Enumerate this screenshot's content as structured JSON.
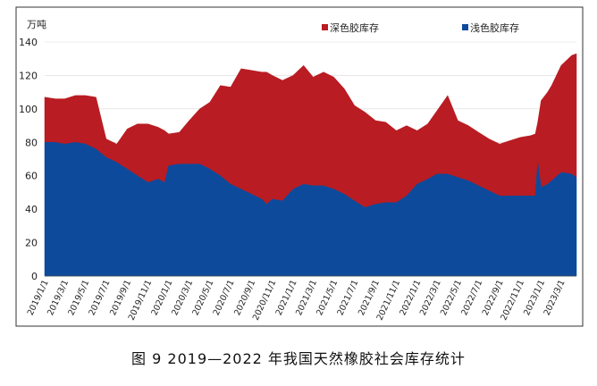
{
  "figure_caption": "图 9  2019—2022 年我国天然橡胶社会库存统计",
  "chart_data": {
    "type": "area",
    "stacked": true,
    "unit_label": "万吨",
    "ylim": [
      0,
      140
    ],
    "yticks": [
      0,
      20,
      40,
      60,
      80,
      100,
      120,
      140
    ],
    "xlim": [
      "2019-01-01",
      "2023-04-15"
    ],
    "xtick_labels": [
      "2019/1/1",
      "2019/3/1",
      "2019/5/1",
      "2019/7/1",
      "2019/9/1",
      "2019/11/1",
      "2020/1/1",
      "2020/3/1",
      "2020/5/1",
      "2020/7/1",
      "2020/9/1",
      "2020/11/1",
      "2021/1/1",
      "2021/3/1",
      "2021/5/1",
      "2021/7/1",
      "2021/9/1",
      "2021/11/1",
      "2022/1/1",
      "2022/3/1",
      "2022/5/1",
      "2022/7/1",
      "2022/9/1",
      "2022/11/1",
      "2023/1/1",
      "2023/3/1"
    ],
    "legend_position": "top",
    "series": [
      {
        "name": "浅色胶库存",
        "color": "#0d4a9c",
        "points": [
          [
            "2019-01-01",
            80
          ],
          [
            "2019-02-01",
            80
          ],
          [
            "2019-03-01",
            79
          ],
          [
            "2019-04-01",
            80
          ],
          [
            "2019-05-01",
            79
          ],
          [
            "2019-06-01",
            76
          ],
          [
            "2019-07-01",
            71
          ],
          [
            "2019-08-01",
            68
          ],
          [
            "2019-09-01",
            64
          ],
          [
            "2019-10-01",
            60
          ],
          [
            "2019-11-01",
            56
          ],
          [
            "2019-12-01",
            58
          ],
          [
            "2019-12-20",
            56
          ],
          [
            "2020-01-01",
            66
          ],
          [
            "2020-02-01",
            67
          ],
          [
            "2020-03-01",
            67
          ],
          [
            "2020-04-01",
            67
          ],
          [
            "2020-05-01",
            64
          ],
          [
            "2020-06-01",
            60
          ],
          [
            "2020-07-01",
            55
          ],
          [
            "2020-08-01",
            52
          ],
          [
            "2020-09-01",
            49
          ],
          [
            "2020-10-01",
            46
          ],
          [
            "2020-10-15",
            43
          ],
          [
            "2020-11-01",
            46
          ],
          [
            "2020-12-01",
            45
          ],
          [
            "2021-01-01",
            52
          ],
          [
            "2021-02-01",
            55
          ],
          [
            "2021-03-01",
            54
          ],
          [
            "2021-04-01",
            54
          ],
          [
            "2021-05-01",
            52
          ],
          [
            "2021-06-01",
            49
          ],
          [
            "2021-07-01",
            45
          ],
          [
            "2021-08-01",
            41
          ],
          [
            "2021-09-01",
            43
          ],
          [
            "2021-10-01",
            44
          ],
          [
            "2021-11-01",
            44
          ],
          [
            "2021-12-01",
            48
          ],
          [
            "2022-01-01",
            55
          ],
          [
            "2022-02-01",
            58
          ],
          [
            "2022-03-01",
            61
          ],
          [
            "2022-04-01",
            61
          ],
          [
            "2022-05-01",
            59
          ],
          [
            "2022-06-01",
            57
          ],
          [
            "2022-07-01",
            54
          ],
          [
            "2022-08-01",
            51
          ],
          [
            "2022-09-01",
            48
          ],
          [
            "2022-10-01",
            48
          ],
          [
            "2022-11-01",
            48
          ],
          [
            "2022-12-01",
            48
          ],
          [
            "2022-12-15",
            48
          ],
          [
            "2022-12-22",
            68
          ],
          [
            "2023-01-01",
            53
          ],
          [
            "2023-01-20",
            55
          ],
          [
            "2023-02-01",
            57
          ],
          [
            "2023-03-01",
            62
          ],
          [
            "2023-04-01",
            61
          ],
          [
            "2023-04-15",
            59
          ]
        ]
      },
      {
        "name": "深色胶库存",
        "color": "#b91c22",
        "points": [
          [
            "2019-01-01",
            27
          ],
          [
            "2019-02-01",
            26
          ],
          [
            "2019-03-01",
            27
          ],
          [
            "2019-04-01",
            28
          ],
          [
            "2019-05-01",
            29
          ],
          [
            "2019-06-01",
            31
          ],
          [
            "2019-07-01",
            11
          ],
          [
            "2019-08-01",
            11
          ],
          [
            "2019-09-01",
            24
          ],
          [
            "2019-10-01",
            31
          ],
          [
            "2019-11-01",
            35
          ],
          [
            "2019-12-01",
            31
          ],
          [
            "2019-12-20",
            31
          ],
          [
            "2020-01-01",
            19
          ],
          [
            "2020-02-01",
            19
          ],
          [
            "2020-03-01",
            26
          ],
          [
            "2020-04-01",
            33
          ],
          [
            "2020-05-01",
            40
          ],
          [
            "2020-06-01",
            54
          ],
          [
            "2020-07-01",
            58
          ],
          [
            "2020-08-01",
            72
          ],
          [
            "2020-09-01",
            74
          ],
          [
            "2020-10-01",
            76
          ],
          [
            "2020-10-15",
            79
          ],
          [
            "2020-11-01",
            74
          ],
          [
            "2020-12-01",
            72
          ],
          [
            "2021-01-01",
            68
          ],
          [
            "2021-02-01",
            71
          ],
          [
            "2021-03-01",
            65
          ],
          [
            "2021-04-01",
            68
          ],
          [
            "2021-05-01",
            67
          ],
          [
            "2021-06-01",
            63
          ],
          [
            "2021-07-01",
            57
          ],
          [
            "2021-08-01",
            57
          ],
          [
            "2021-09-01",
            50
          ],
          [
            "2021-10-01",
            48
          ],
          [
            "2021-11-01",
            43
          ],
          [
            "2021-12-01",
            42
          ],
          [
            "2022-01-01",
            32
          ],
          [
            "2022-02-01",
            33
          ],
          [
            "2022-03-01",
            38
          ],
          [
            "2022-04-01",
            47
          ],
          [
            "2022-05-01",
            34
          ],
          [
            "2022-06-01",
            33
          ],
          [
            "2022-07-01",
            32
          ],
          [
            "2022-08-01",
            31
          ],
          [
            "2022-09-01",
            31
          ],
          [
            "2022-10-01",
            33
          ],
          [
            "2022-11-01",
            35
          ],
          [
            "2022-12-01",
            36
          ],
          [
            "2022-12-15",
            37
          ],
          [
            "2022-12-22",
            24
          ],
          [
            "2023-01-01",
            52
          ],
          [
            "2023-01-20",
            55
          ],
          [
            "2023-02-01",
            57
          ],
          [
            "2023-03-01",
            64
          ],
          [
            "2023-04-01",
            71
          ],
          [
            "2023-04-15",
            74
          ]
        ]
      }
    ]
  }
}
